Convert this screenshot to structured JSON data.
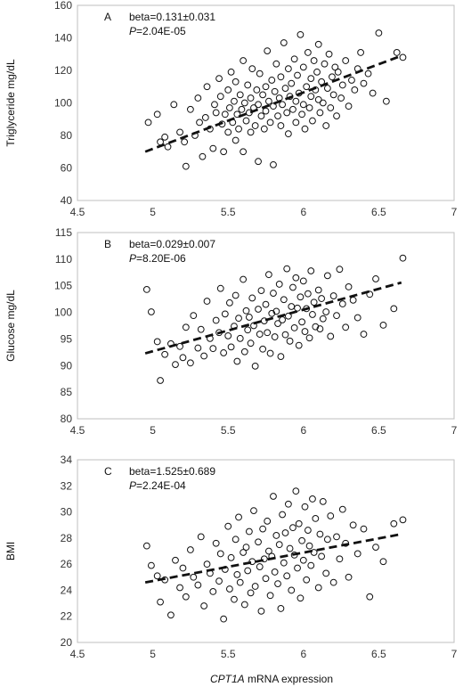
{
  "x_axis_label": {
    "italic": "CPT1A",
    "rest": " mRNA expression"
  },
  "chart_data": [
    {
      "type": "scatter",
      "panel_label": "A",
      "ylabel": "Triglyceride mg/dL",
      "annotation": {
        "line1": "beta=0.131±0.031",
        "p_italic": "P",
        "p_value": "=2.04E-05"
      },
      "xlim": [
        4.5,
        7
      ],
      "ylim": [
        40,
        160
      ],
      "xticks": [
        4.5,
        5,
        5.5,
        6,
        6.5,
        7
      ],
      "yticks": [
        40,
        60,
        80,
        100,
        120,
        140,
        160
      ],
      "trend": {
        "x": [
          4.95,
          6.65
        ],
        "y": [
          70,
          129
        ]
      },
      "x": [
        4.97,
        5.03,
        5.05,
        5.08,
        5.1,
        5.14,
        5.18,
        5.21,
        5.22,
        5.25,
        5.28,
        5.3,
        5.31,
        5.33,
        5.35,
        5.36,
        5.38,
        5.4,
        5.41,
        5.42,
        5.44,
        5.45,
        5.46,
        5.47,
        5.48,
        5.5,
        5.5,
        5.51,
        5.52,
        5.53,
        5.54,
        5.55,
        5.55,
        5.56,
        5.57,
        5.58,
        5.59,
        5.6,
        5.6,
        5.61,
        5.62,
        5.63,
        5.64,
        5.65,
        5.65,
        5.66,
        5.67,
        5.68,
        5.69,
        5.7,
        5.7,
        5.71,
        5.72,
        5.73,
        5.74,
        5.75,
        5.75,
        5.76,
        5.77,
        5.78,
        5.79,
        5.8,
        5.8,
        5.81,
        5.82,
        5.83,
        5.84,
        5.85,
        5.85,
        5.86,
        5.87,
        5.88,
        5.89,
        5.9,
        5.9,
        5.91,
        5.92,
        5.93,
        5.94,
        5.95,
        5.95,
        5.96,
        5.97,
        5.98,
        5.99,
        6.0,
        6.0,
        6.01,
        6.02,
        6.03,
        6.04,
        6.05,
        6.05,
        6.06,
        6.07,
        6.08,
        6.09,
        6.1,
        6.1,
        6.11,
        6.12,
        6.13,
        6.14,
        6.15,
        6.16,
        6.17,
        6.18,
        6.19,
        6.2,
        6.21,
        6.22,
        6.23,
        6.25,
        6.26,
        6.28,
        6.3,
        6.32,
        6.34,
        6.36,
        6.38,
        6.4,
        6.43,
        6.46,
        6.5,
        6.55,
        6.62,
        6.66
      ],
      "y": [
        88,
        93,
        76,
        79,
        73,
        99,
        82,
        76,
        61,
        96,
        80,
        103,
        88,
        67,
        91,
        110,
        84,
        72,
        99,
        94,
        115,
        104,
        87,
        70,
        93,
        108,
        82,
        97,
        119,
        88,
        101,
        77,
        113,
        93,
        84,
        105,
        96,
        126,
        70,
        100,
        89,
        111,
        94,
        82,
        103,
        121,
        97,
        86,
        108,
        64,
        99,
        118,
        92,
        105,
        84,
        110,
        95,
        132,
        101,
        88,
        114,
        62,
        98,
        107,
        124,
        92,
        103,
        86,
        116,
        99,
        137,
        109,
        94,
        121,
        81,
        104,
        112,
        96,
        127,
        101,
        88,
        117,
        106,
        142,
        93,
        99,
        122,
        84,
        110,
        131,
        97,
        104,
        115,
        89,
        126,
        108,
        119,
        102,
        136,
        94,
        113,
        100,
        124,
        86,
        109,
        130,
        97,
        116,
        105,
        122,
        92,
        119,
        103,
        111,
        126,
        98,
        114,
        108,
        121,
        131,
        112,
        118,
        106,
        143,
        101,
        131,
        128
      ]
    },
    {
      "type": "scatter",
      "panel_label": "B",
      "ylabel": "Glucose mg/dL",
      "annotation": {
        "line1": "beta=0.029±0.007",
        "p_italic": "P",
        "p_value": "=8.20E-06"
      },
      "xlim": [
        4.5,
        7
      ],
      "ylim": [
        80,
        115
      ],
      "xticks": [
        4.5,
        5,
        5.5,
        6,
        6.5,
        7
      ],
      "yticks": [
        80,
        85,
        90,
        95,
        100,
        105,
        110,
        115
      ],
      "trend": {
        "x": [
          4.95,
          6.65
        ],
        "y": [
          92.3,
          105.6
        ]
      },
      "x": [
        4.96,
        4.99,
        5.03,
        5.05,
        5.08,
        5.12,
        5.15,
        5.18,
        5.2,
        5.22,
        5.25,
        5.27,
        5.3,
        5.32,
        5.34,
        5.36,
        5.38,
        5.4,
        5.42,
        5.44,
        5.45,
        5.47,
        5.48,
        5.5,
        5.51,
        5.52,
        5.54,
        5.55,
        5.56,
        5.57,
        5.58,
        5.6,
        5.61,
        5.62,
        5.63,
        5.64,
        5.65,
        5.66,
        5.67,
        5.68,
        5.7,
        5.71,
        5.72,
        5.73,
        5.74,
        5.75,
        5.76,
        5.77,
        5.78,
        5.79,
        5.8,
        5.81,
        5.82,
        5.83,
        5.84,
        5.85,
        5.86,
        5.87,
        5.88,
        5.89,
        5.9,
        5.91,
        5.92,
        5.93,
        5.94,
        5.95,
        5.96,
        5.97,
        5.98,
        5.99,
        6.0,
        6.01,
        6.02,
        6.03,
        6.04,
        6.05,
        6.06,
        6.07,
        6.08,
        6.1,
        6.11,
        6.12,
        6.13,
        6.15,
        6.16,
        6.18,
        6.2,
        6.22,
        6.24,
        6.26,
        6.28,
        6.3,
        6.33,
        6.36,
        6.4,
        6.44,
        6.48,
        6.53,
        6.6,
        6.66
      ],
      "y": [
        104.3,
        100.1,
        94.5,
        87.2,
        92.1,
        94.1,
        90.2,
        93.6,
        91.5,
        97.2,
        90.5,
        99.4,
        93.3,
        96.8,
        91.8,
        102.1,
        95.1,
        93.2,
        98.5,
        96.2,
        104.5,
        92.4,
        99.7,
        95.6,
        101.8,
        93.5,
        97.4,
        103.2,
        90.8,
        98.9,
        95.1,
        106.2,
        92.6,
        100.3,
        96.7,
        99.1,
        94.2,
        102.7,
        97.5,
        89.9,
        100.6,
        95.9,
        104.1,
        93.1,
        98.4,
        101.5,
        96.2,
        107.1,
        92.3,
        99.8,
        103.6,
        95.4,
        100.2,
        97.9,
        105.3,
        91.7,
        98.6,
        102.4,
        95.8,
        108.2,
        99.3,
        94.6,
        101.1,
        104.7,
        97.1,
        106.5,
        100.8,
        93.8,
        102.9,
        98.2,
        105.9,
        96.4,
        100.7,
        103.5,
        95.2,
        107.8,
        99.6,
        101.9,
        97.3,
        104.2,
        96.9,
        102.6,
        98.8,
        100.1,
        106.9,
        95.5,
        103.1,
        99.4,
        108.1,
        101.6,
        97.2,
        104.8,
        102.3,
        99.0,
        95.9,
        103.4,
        106.3,
        97.6,
        100.7,
        110.2
      ]
    },
    {
      "type": "scatter",
      "panel_label": "C",
      "ylabel": "BMI",
      "annotation": {
        "line1": "beta=1.525±0.689",
        "p_italic": "P",
        "p_value": "=2.24E-04"
      },
      "xlim": [
        4.5,
        7
      ],
      "ylim": [
        20,
        34
      ],
      "xticks": [
        4.5,
        5,
        5.5,
        6,
        6.5,
        7
      ],
      "yticks": [
        20,
        22,
        24,
        26,
        28,
        30,
        32,
        34
      ],
      "trend": {
        "x": [
          4.95,
          6.65
        ],
        "y": [
          24.6,
          28.3
        ]
      },
      "x": [
        4.96,
        4.99,
        5.03,
        5.05,
        5.08,
        5.12,
        5.15,
        5.18,
        5.2,
        5.22,
        5.25,
        5.27,
        5.3,
        5.32,
        5.34,
        5.36,
        5.38,
        5.4,
        5.42,
        5.44,
        5.45,
        5.47,
        5.48,
        5.5,
        5.51,
        5.52,
        5.54,
        5.55,
        5.56,
        5.57,
        5.58,
        5.6,
        5.61,
        5.62,
        5.63,
        5.64,
        5.65,
        5.66,
        5.67,
        5.68,
        5.7,
        5.71,
        5.72,
        5.73,
        5.74,
        5.75,
        5.76,
        5.77,
        5.78,
        5.79,
        5.8,
        5.81,
        5.82,
        5.83,
        5.84,
        5.85,
        5.86,
        5.87,
        5.88,
        5.89,
        5.9,
        5.91,
        5.92,
        5.93,
        5.94,
        5.95,
        5.96,
        5.97,
        5.98,
        5.99,
        6.0,
        6.01,
        6.02,
        6.03,
        6.04,
        6.05,
        6.06,
        6.07,
        6.08,
        6.1,
        6.11,
        6.12,
        6.13,
        6.15,
        6.16,
        6.18,
        6.2,
        6.22,
        6.24,
        6.26,
        6.28,
        6.3,
        6.33,
        6.36,
        6.4,
        6.44,
        6.48,
        6.53,
        6.6,
        6.66
      ],
      "y": [
        27.4,
        25.9,
        25.1,
        23.1,
        24.8,
        22.1,
        26.3,
        24.2,
        25.7,
        23.5,
        27.1,
        25.0,
        24.4,
        28.1,
        22.8,
        26.0,
        25.3,
        23.9,
        27.6,
        24.7,
        26.8,
        21.8,
        25.6,
        28.9,
        24.1,
        26.5,
        23.3,
        27.9,
        25.2,
        29.6,
        24.6,
        26.9,
        22.9,
        27.3,
        25.5,
        28.5,
        23.8,
        26.2,
        30.1,
        24.3,
        27.7,
        25.8,
        22.4,
        28.7,
        26.4,
        24.9,
        29.3,
        27.0,
        23.6,
        26.6,
        31.2,
        25.4,
        28.2,
        24.5,
        27.5,
        22.6,
        29.8,
        26.1,
        28.4,
        25.1,
        30.6,
        27.2,
        24.0,
        28.8,
        26.7,
        31.6,
        25.7,
        29.1,
        23.4,
        27.8,
        26.3,
        30.4,
        24.8,
        28.6,
        27.4,
        25.9,
        31.0,
        26.9,
        29.5,
        24.2,
        28.3,
        26.6,
        30.8,
        25.3,
        27.9,
        29.7,
        24.6,
        28.1,
        26.4,
        30.2,
        27.6,
        25.0,
        29.0,
        26.8,
        28.7,
        23.5,
        27.3,
        26.2,
        29.1,
        29.4
      ]
    }
  ]
}
